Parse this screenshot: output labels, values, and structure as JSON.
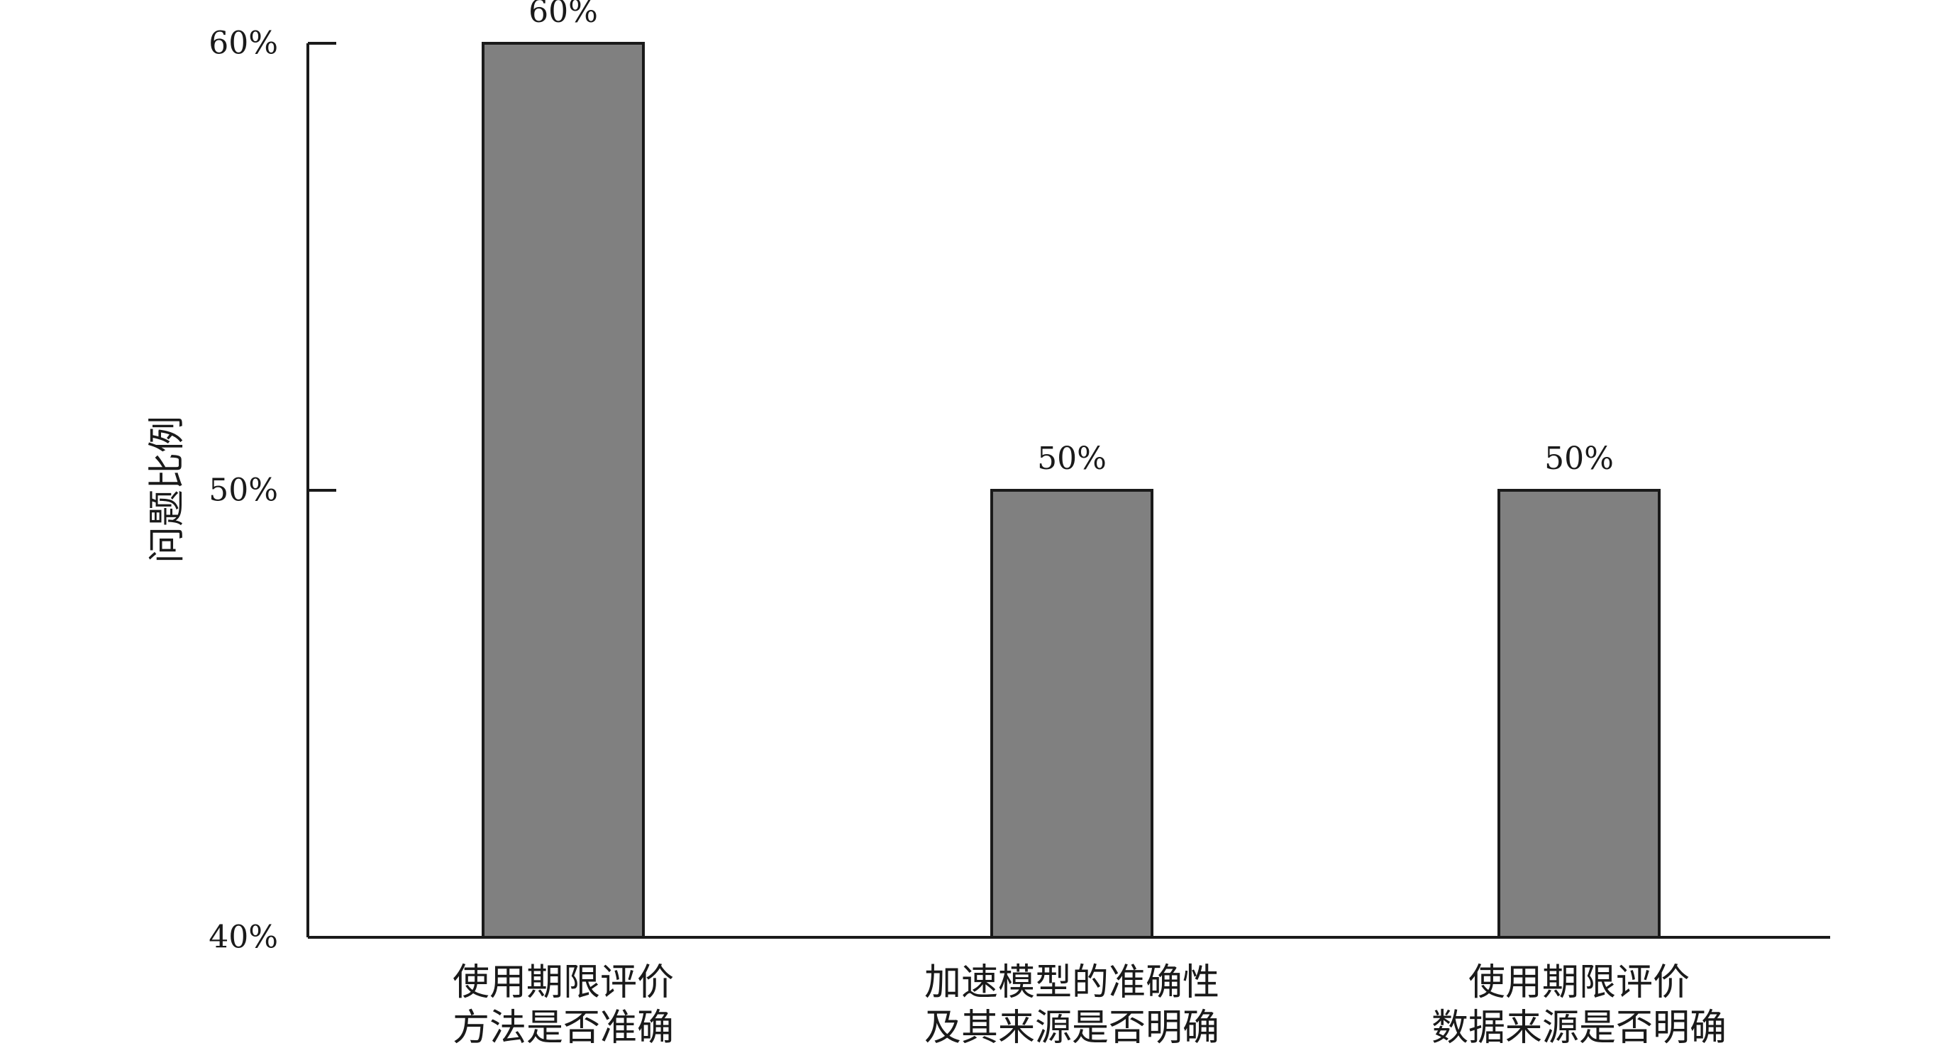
{
  "chart_data": {
    "type": "bar",
    "categories": [
      [
        "使用期限评价",
        "方法是否准确"
      ],
      [
        "加速模型的准确性",
        "及其来源是否明确"
      ],
      [
        "使用期限评价",
        "数据来源是否明确"
      ]
    ],
    "values": [
      60,
      50,
      50
    ],
    "data_labels": [
      "60%",
      "50%",
      "50%"
    ],
    "ylabel": "问题比例",
    "xlabel": "",
    "ylim": [
      40,
      60
    ],
    "yticks": [
      40,
      50,
      60
    ],
    "ytick_labels": [
      "40%",
      "50%",
      "60%"
    ],
    "grid": false,
    "colors": {
      "bar": "#808080",
      "axis": "#1a1a1a"
    }
  }
}
